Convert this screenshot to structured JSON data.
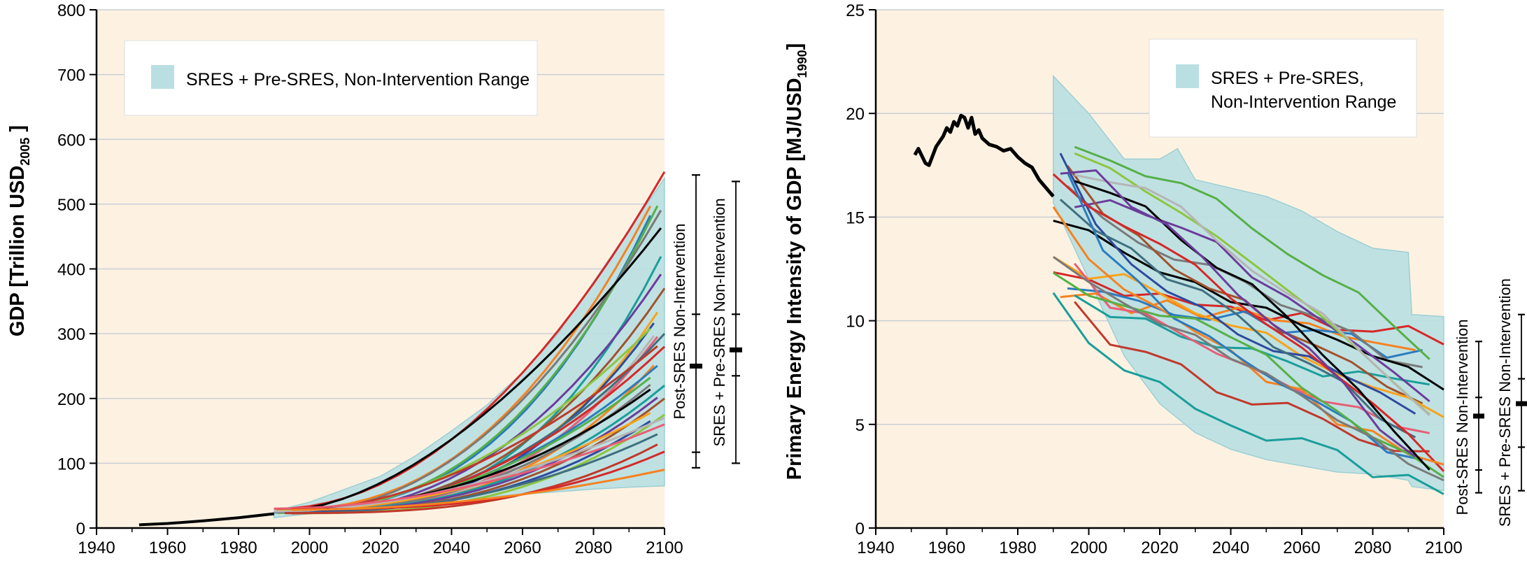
{
  "colors": {
    "plot_bg": "#fdf2e2",
    "range_fill": "#b9dfe2",
    "range_stroke": "#9ccfd4",
    "gridline": "#c9cfd6",
    "historical": "#000000",
    "palette": [
      "#d62828",
      "#f58220",
      "#2b7bbf",
      "#55b047",
      "#7a7a7a",
      "#000000",
      "#1a9e9a",
      "#6a3d9a",
      "#a0522d",
      "#f9a21b",
      "#2e4a9e",
      "#8cc63f",
      "#b5b5b5",
      "#e85d75",
      "#3f6f7f",
      "#c0392b"
    ]
  },
  "chart_data": [
    {
      "type": "line",
      "title": "",
      "xlabel": "",
      "ylabel": "GDP [Trillion USD",
      "ylabel_sub": "2005",
      "ylabel_end": " ]",
      "xlim": [
        1940,
        2100
      ],
      "ylim": [
        0,
        800
      ],
      "xticks": [
        1940,
        1960,
        1980,
        2000,
        2020,
        2040,
        2060,
        2080,
        2100
      ],
      "yticks": [
        0,
        100,
        200,
        300,
        400,
        500,
        600,
        700,
        800
      ],
      "grid": "horizontal",
      "legend": {
        "label": "SRES + Pre-SRES, Non-Intervention Range",
        "placement": "top-left"
      },
      "historical": {
        "x": [
          1952,
          1960,
          1970,
          1980,
          1990
        ],
        "y": [
          5,
          7,
          11,
          16,
          22
        ]
      },
      "range_band": {
        "x": [
          1990,
          2000,
          2010,
          2020,
          2030,
          2040,
          2050,
          2060,
          2070,
          2080,
          2090,
          2100
        ],
        "upper": [
          26,
          40,
          60,
          80,
          112,
          150,
          190,
          240,
          300,
          380,
          460,
          540
        ],
        "lower": [
          16,
          22,
          28,
          33,
          38,
          43,
          48,
          52,
          56,
          60,
          63,
          65
        ]
      },
      "scenario_endpoints_2100": [
        550,
        540,
        530,
        520,
        500,
        470,
        430,
        400,
        370,
        350,
        340,
        330,
        320,
        310,
        300,
        290,
        280,
        270,
        260,
        250,
        240,
        230,
        220,
        210,
        200,
        190,
        180,
        175,
        170,
        160,
        150,
        135,
        118,
        90
      ],
      "range_markers": [
        {
          "label": "Post-SRES Non-Intervention",
          "max": 545,
          "upper": 330,
          "median": 250,
          "lower": 117,
          "min": 93
        },
        {
          "label": "SRES + Pre-SRES Non-Intervention",
          "max": 535,
          "upper": 330,
          "median": 275,
          "lower": 235,
          "min": 100
        }
      ]
    },
    {
      "type": "line",
      "title": "",
      "xlabel": "",
      "ylabel": "Primary Energy Intensity of GDP [MJ/USD",
      "ylabel_sub": "1990",
      "ylabel_end": "]",
      "xlim": [
        1940,
        2100
      ],
      "ylim": [
        0,
        25
      ],
      "xticks": [
        1940,
        1960,
        1980,
        2000,
        2020,
        2040,
        2060,
        2080,
        2100
      ],
      "yticks": [
        0,
        5,
        10,
        15,
        20,
        25
      ],
      "grid": "horizontal",
      "legend": {
        "label_line1": "SRES + Pre-SRES,",
        "label_line2": "Non-Intervention Range",
        "placement": "top-right"
      },
      "historical": {
        "x": [
          1951,
          1952,
          1954,
          1955,
          1957,
          1959,
          1960,
          1961,
          1962,
          1963,
          1964,
          1965,
          1966,
          1967,
          1968,
          1969,
          1970,
          1972,
          1974,
          1976,
          1978,
          1980,
          1982,
          1984,
          1986,
          1988,
          1990
        ],
        "y": [
          18.0,
          18.3,
          17.6,
          17.5,
          18.4,
          18.9,
          19.3,
          19.1,
          19.6,
          19.4,
          19.9,
          19.8,
          19.3,
          19.8,
          19.0,
          19.2,
          18.8,
          18.5,
          18.4,
          18.2,
          18.3,
          17.9,
          17.6,
          17.4,
          16.8,
          16.4,
          16.0
        ]
      },
      "range_band": {
        "x": [
          1990,
          2000,
          2010,
          2020,
          2025,
          2030,
          2040,
          2050,
          2060,
          2070,
          2080,
          2090,
          2091,
          2100
        ],
        "upper": [
          21.8,
          20.0,
          17.8,
          17.8,
          18.3,
          16.8,
          16.4,
          16.0,
          15.3,
          14.3,
          13.5,
          13.3,
          10.3,
          10.2
        ],
        "lower": [
          15.7,
          12.0,
          8.3,
          6.0,
          5.3,
          4.6,
          3.8,
          3.3,
          3.0,
          2.7,
          2.6,
          2.3,
          2.0,
          1.8
        ]
      },
      "scenario_endpoints_2100": [
        9.2,
        8.6,
        8.0,
        7.7,
        7.2,
        6.8,
        6.4,
        6.0,
        5.6,
        5.3,
        5.0,
        4.6,
        4.3,
        4.0,
        3.7,
        3.4,
        3.1,
        2.8,
        2.6,
        2.4,
        2.2,
        2.0,
        1.8,
        1.6
      ],
      "range_markers": [
        {
          "label": "Post-SRES Non-Intervention",
          "max": 9.0,
          "upper": 6.3,
          "median": 5.4,
          "lower": 2.8,
          "min": 1.7
        },
        {
          "label": "SRES + Pre-SRES Non-Intervention",
          "max": 10.3,
          "upper": 7.2,
          "median": 6.0,
          "lower": 3.9,
          "min": 1.8
        }
      ]
    }
  ]
}
